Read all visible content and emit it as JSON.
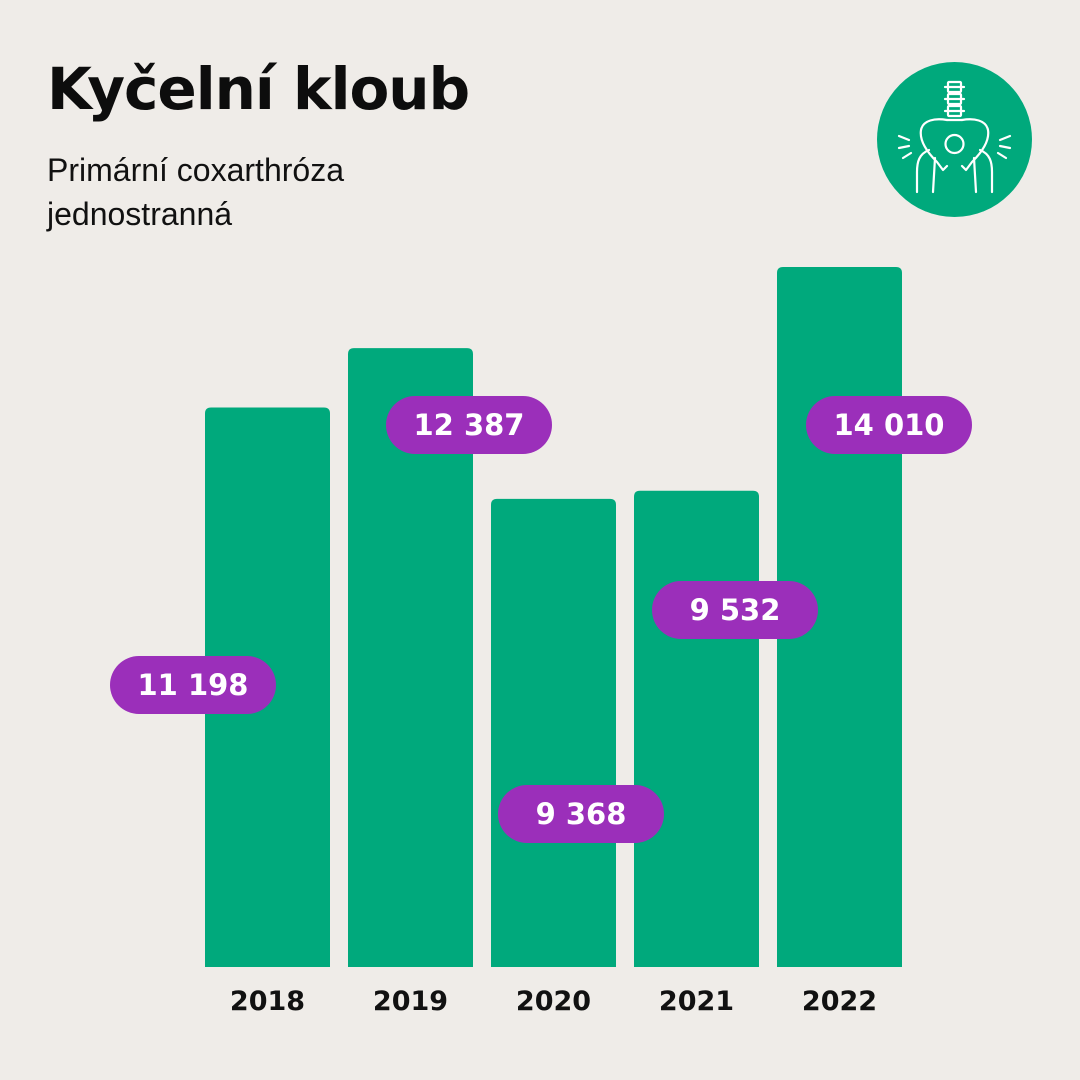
{
  "header": {
    "title": "Kyčelní kloub",
    "subtitle_line1": "Primární coxarthróza",
    "subtitle_line2": "jednostranná"
  },
  "icon": {
    "name": "hip-joint-icon"
  },
  "colors": {
    "background": "#efece8",
    "bar": "#00a97c",
    "label_pill": "#9b2fba",
    "label_text": "#ffffff",
    "axis_text": "#111111"
  },
  "chart_data": {
    "type": "bar",
    "categories": [
      "2018",
      "2019",
      "2020",
      "2021",
      "2022"
    ],
    "values": [
      11198,
      12387,
      9368,
      9532,
      14010
    ],
    "data_labels": [
      "11 198",
      "12 387",
      "9 368",
      "9 532",
      "14 010"
    ],
    "title": "Kyčelní kloub",
    "subtitle": "Primární coxarthróza jednostranná",
    "xlabel": "",
    "ylabel": "",
    "ylim": [
      0,
      14010
    ],
    "grid": false,
    "legend": "none"
  }
}
